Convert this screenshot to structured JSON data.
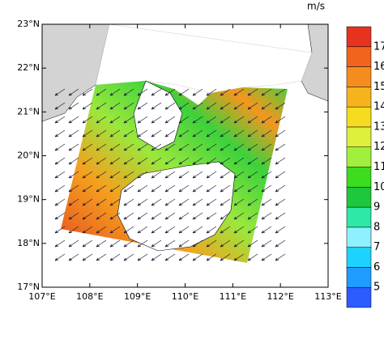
{
  "map": {
    "xticks": [
      {
        "value": 107,
        "label": "107°E"
      },
      {
        "value": 108,
        "label": "108°E"
      },
      {
        "value": 109,
        "label": "109°E"
      },
      {
        "value": 110,
        "label": "110°E"
      },
      {
        "value": 111,
        "label": "111°E"
      },
      {
        "value": 112,
        "label": "112°E"
      },
      {
        "value": 113,
        "label": "113°E"
      }
    ],
    "yticks": [
      {
        "value": 17,
        "label": "17°N"
      },
      {
        "value": 18,
        "label": "18°N"
      },
      {
        "value": 19,
        "label": "19°N"
      },
      {
        "value": 20,
        "label": "20°N"
      },
      {
        "value": 21,
        "label": "21°N"
      },
      {
        "value": 22,
        "label": "22°N"
      },
      {
        "value": 23,
        "label": "23°N"
      }
    ],
    "xlim": [
      107,
      113
    ],
    "ylim": [
      17,
      23
    ]
  },
  "colorbar": {
    "unit": "m/s",
    "levels": [
      5,
      6,
      7,
      8,
      9,
      10,
      11,
      12,
      13,
      14,
      15,
      16,
      17
    ],
    "colors": [
      "#2a5cff",
      "#1e9cff",
      "#1ed2ff",
      "#8ff0ff",
      "#2ee8a8",
      "#1ec83c",
      "#3cdc1e",
      "#a0f03c",
      "#dcf03c",
      "#f5dc1e",
      "#f5b41e",
      "#f58c1e",
      "#f0641e",
      "#e6321e"
    ]
  }
}
